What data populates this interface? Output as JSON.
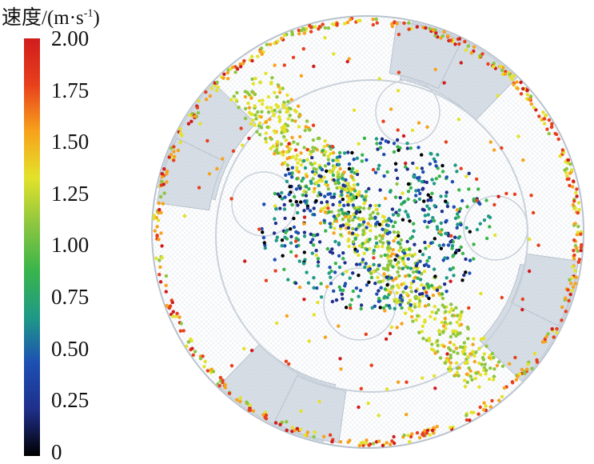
{
  "legend": {
    "title_main": "速度/(m·s",
    "title_sup": "-1",
    "title_close": ")",
    "ticks": [
      "2.00",
      "1.75",
      "1.50",
      "1.25",
      "1.00",
      "0.75",
      "0.50",
      "0.25",
      "0"
    ],
    "range": [
      0,
      2.0
    ],
    "gradient_colors": [
      "#000000",
      "#1f2f8a",
      "#1d4fb3",
      "#1f9a86",
      "#39b54a",
      "#8dc63f",
      "#e3e22a",
      "#f7a21b",
      "#e8401c",
      "#d01c1c"
    ]
  },
  "scene": {
    "description_free": true,
    "colors": {
      "outline": "#b9c3ce",
      "mesh": "#e3e8ee",
      "blade": "#dde3ea"
    }
  }
}
